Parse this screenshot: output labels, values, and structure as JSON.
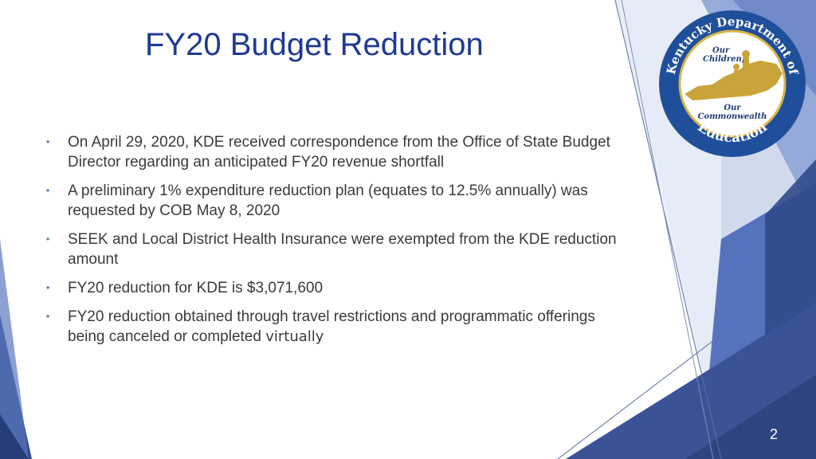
{
  "slide": {
    "title": "FY20 Budget Reduction",
    "page_number": "2",
    "bullets": [
      {
        "text": "On April 29, 2020, KDE received correspondence from the Office of State Budget Director regarding an anticipated FY20 revenue shortfall",
        "tail": ""
      },
      {
        "text": "A preliminary 1% expenditure reduction plan (equates to 12.5% annually) was requested by COB May 8, 2020",
        "tail": ""
      },
      {
        "text": "SEEK and Local District Health Insurance were exempted from the KDE reduction amount",
        "tail": ""
      },
      {
        "text": "FY20 reduction for KDE is $3,071,600",
        "tail": ""
      },
      {
        "text": "FY20 reduction obtained through travel restrictions and programmatic offerings being canceled or completed ",
        "tail": "virtually"
      }
    ],
    "bullet_marker": "•"
  },
  "logo": {
    "arc_top": "Kentucky Department of",
    "line1": "Our",
    "line2": "Children,",
    "line3": "Our",
    "line4": "Commonwealth",
    "arc_bottom": "Education"
  },
  "colors": {
    "title": "#1f3a93",
    "accent_dark": "#2f4a8a",
    "accent_mid": "#4f6db8",
    "accent_light": "#9fb2dc",
    "body_text": "#3a3a3a"
  }
}
